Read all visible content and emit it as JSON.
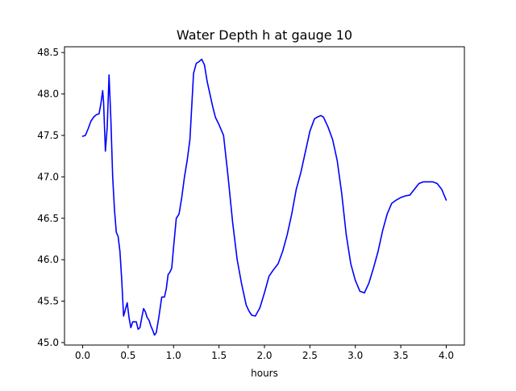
{
  "chart_data": {
    "type": "line",
    "title": "Water Depth h at gauge 10",
    "xlabel": "hours",
    "ylabel": "",
    "xlim": [
      -0.2,
      4.2
    ],
    "ylim": [
      44.97,
      48.57
    ],
    "x_ticks": [
      0.0,
      0.5,
      1.0,
      1.5,
      2.0,
      2.5,
      3.0,
      3.5,
      4.0
    ],
    "x_tick_labels": [
      "0.0",
      "0.5",
      "1.0",
      "1.5",
      "2.0",
      "2.5",
      "3.0",
      "3.5",
      "4.0"
    ],
    "y_ticks": [
      45.0,
      45.5,
      46.0,
      46.5,
      47.0,
      47.5,
      48.0,
      48.5
    ],
    "y_tick_labels": [
      "45.0",
      "45.5",
      "46.0",
      "46.5",
      "47.0",
      "47.5",
      "48.0",
      "48.5"
    ],
    "grid": false,
    "series": [
      {
        "color": "#0000ff",
        "x": [
          0.0,
          0.03,
          0.06,
          0.09,
          0.12,
          0.15,
          0.18,
          0.2,
          0.22,
          0.23,
          0.25,
          0.27,
          0.29,
          0.31,
          0.33,
          0.35,
          0.37,
          0.39,
          0.41,
          0.43,
          0.45,
          0.47,
          0.49,
          0.51,
          0.53,
          0.55,
          0.57,
          0.59,
          0.61,
          0.63,
          0.65,
          0.67,
          0.69,
          0.71,
          0.73,
          0.75,
          0.77,
          0.79,
          0.81,
          0.84,
          0.87,
          0.9,
          0.92,
          0.94,
          0.96,
          0.98,
          1.0,
          1.03,
          1.06,
          1.09,
          1.12,
          1.15,
          1.18,
          1.2,
          1.22,
          1.25,
          1.28,
          1.31,
          1.34,
          1.37,
          1.4,
          1.43,
          1.46,
          1.5,
          1.55,
          1.6,
          1.65,
          1.7,
          1.75,
          1.8,
          1.83,
          1.86,
          1.9,
          1.95,
          2.0,
          2.05,
          2.1,
          2.15,
          2.2,
          2.25,
          2.3,
          2.35,
          2.4,
          2.45,
          2.5,
          2.55,
          2.58,
          2.62,
          2.65,
          2.7,
          2.75,
          2.8,
          2.85,
          2.9,
          2.95,
          3.0,
          3.05,
          3.1,
          3.15,
          3.2,
          3.25,
          3.3,
          3.35,
          3.4,
          3.45,
          3.5,
          3.55,
          3.6,
          3.65,
          3.7,
          3.75,
          3.8,
          3.85,
          3.9,
          3.95,
          4.0
        ],
        "y": [
          47.49,
          47.5,
          47.58,
          47.67,
          47.72,
          47.75,
          47.76,
          47.88,
          48.04,
          47.9,
          47.31,
          47.6,
          48.23,
          47.7,
          47.0,
          46.6,
          46.33,
          46.28,
          46.1,
          45.75,
          45.32,
          45.4,
          45.48,
          45.3,
          45.18,
          45.25,
          45.25,
          45.25,
          45.16,
          45.18,
          45.3,
          45.41,
          45.37,
          45.3,
          45.27,
          45.2,
          45.15,
          45.09,
          45.12,
          45.32,
          45.55,
          45.55,
          45.65,
          45.82,
          45.85,
          45.9,
          46.15,
          46.5,
          46.55,
          46.75,
          47.0,
          47.2,
          47.45,
          47.85,
          48.25,
          48.37,
          48.39,
          48.42,
          48.35,
          48.15,
          48.0,
          47.85,
          47.72,
          47.63,
          47.5,
          47.0,
          46.45,
          46.0,
          45.7,
          45.45,
          45.38,
          45.33,
          45.32,
          45.42,
          45.6,
          45.8,
          45.88,
          45.95,
          46.1,
          46.3,
          46.55,
          46.85,
          47.05,
          47.3,
          47.55,
          47.7,
          47.72,
          47.74,
          47.72,
          47.6,
          47.45,
          47.2,
          46.8,
          46.3,
          45.95,
          45.75,
          45.62,
          45.6,
          45.72,
          45.9,
          46.1,
          46.35,
          46.55,
          46.68,
          46.72,
          46.75,
          46.77,
          46.78,
          46.85,
          46.92,
          46.94,
          46.94,
          46.94,
          46.92,
          46.85,
          46.72
        ]
      }
    ]
  }
}
